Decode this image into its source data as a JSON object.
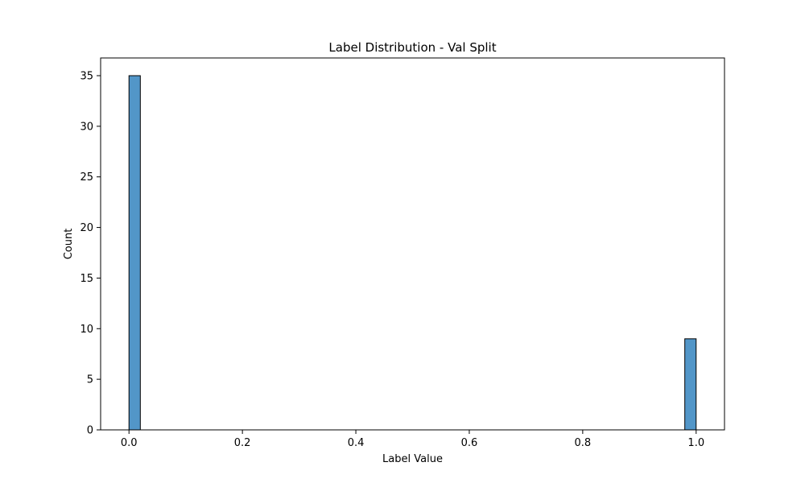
{
  "chart_data": {
    "type": "bar",
    "title": "Label Distribution - Val Split",
    "xlabel": "Label Value",
    "ylabel": "Count",
    "xlim": [
      -0.05,
      1.05
    ],
    "ylim": [
      0,
      36.75
    ],
    "xticks": [
      0.0,
      0.2,
      0.4,
      0.6,
      0.8,
      1.0
    ],
    "xtick_labels": [
      "0.0",
      "0.2",
      "0.4",
      "0.6",
      "0.8",
      "1.0"
    ],
    "yticks": [
      0,
      5,
      10,
      15,
      20,
      25,
      30,
      35
    ],
    "ytick_labels": [
      "0",
      "5",
      "10",
      "15",
      "20",
      "25",
      "30",
      "35"
    ],
    "bins": [
      {
        "x0": 0.0,
        "x1": 0.02,
        "count": 35
      },
      {
        "x0": 0.98,
        "x1": 1.0,
        "count": 9
      }
    ],
    "bar_color": "#5296c8",
    "edge_color": "#000000",
    "grid": false,
    "legend": false
  }
}
